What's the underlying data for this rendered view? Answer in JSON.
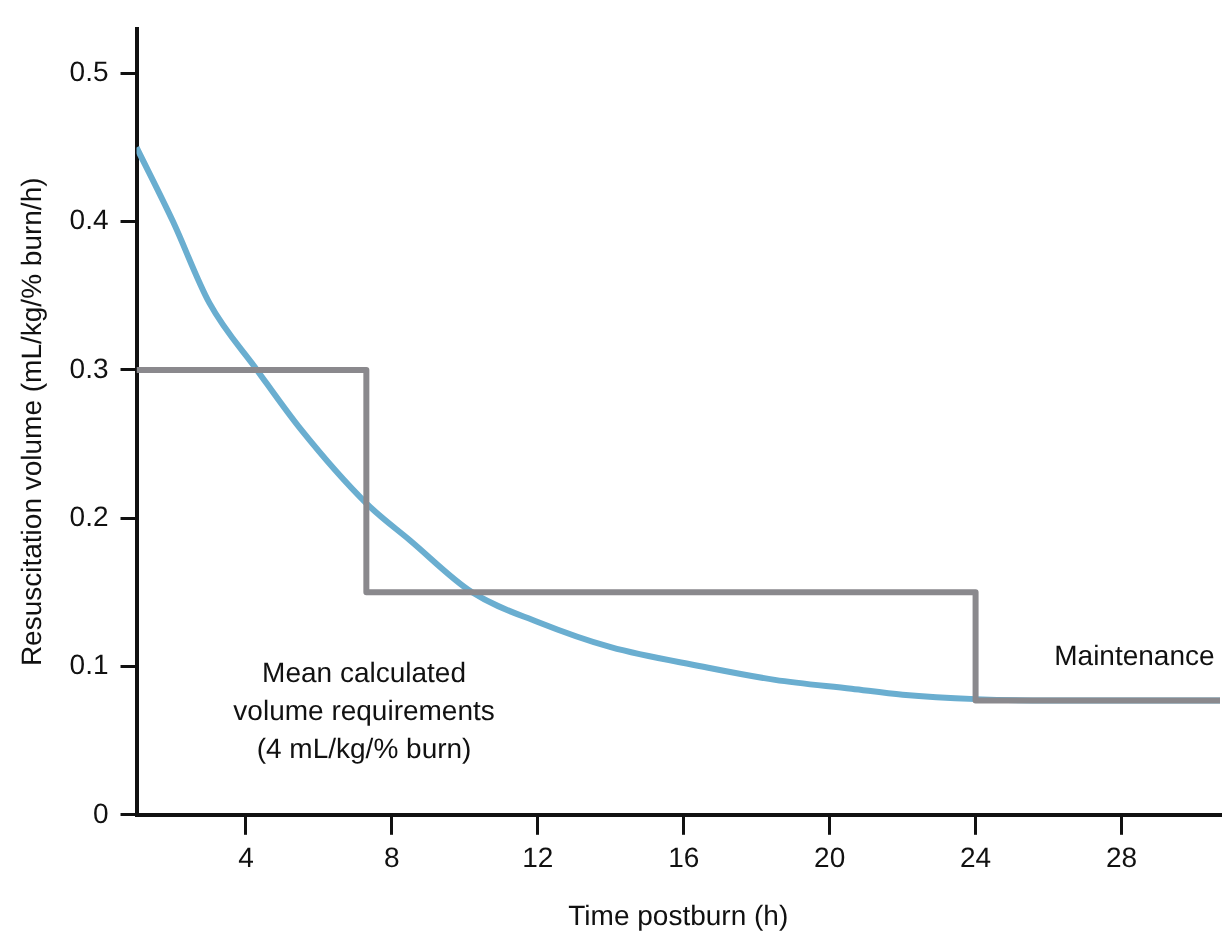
{
  "chart_data": {
    "type": "line",
    "xlabel": "Time postburn (h)",
    "ylabel": "Resuscitation volume (mL/kg/% burn/h)",
    "xlim": [
      1,
      30.7
    ],
    "xticks": [
      4,
      8,
      12,
      16,
      20,
      24,
      28
    ],
    "ylim": [
      0,
      0.53
    ],
    "yticks": [
      0,
      0.1,
      0.2,
      0.3,
      0.4,
      0.5
    ],
    "marker": "none",
    "legend": false,
    "series": [
      {
        "type": "line",
        "color": "#8a898d",
        "x": [
          1,
          7.3,
          7.3,
          24,
          24,
          30.7
        ],
        "values": [
          0.3,
          0.3,
          0.15,
          0.15,
          0.077,
          0.077
        ]
      },
      {
        "type": "line",
        "color": "#6aaed0",
        "x": [
          1,
          2,
          3,
          4.3,
          5.5,
          7.3,
          8.5,
          10.2,
          12,
          14,
          16.5,
          18.5,
          20.6,
          22,
          24,
          26,
          30.7
        ],
        "values": [
          0.45,
          0.4,
          0.345,
          0.3,
          0.26,
          0.21,
          0.185,
          0.15,
          0.13,
          0.113,
          0.1,
          0.091,
          0.085,
          0.081,
          0.078,
          0.077,
          0.077
        ]
      }
    ],
    "annotations": [
      "Mean calculated\nvolume requirements\n(4 mL/kg/% burn)",
      "Maintenance"
    ]
  }
}
